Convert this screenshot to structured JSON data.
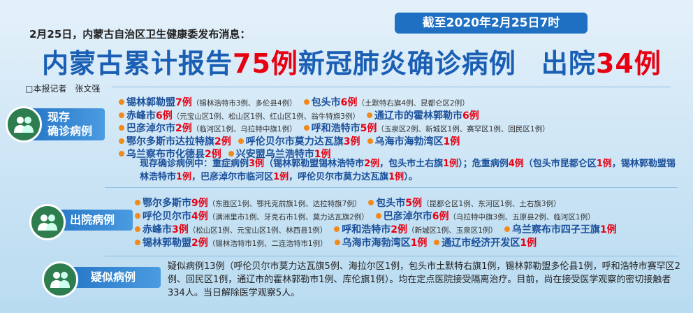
{
  "header": {
    "date_badge": "截至2020年2月25日7时",
    "intro": "2月25日，内蒙古自治区卫生健康委发布消息：",
    "headline": {
      "part1": "内蒙古累计报告",
      "confirmed": "75例",
      "part2": "新冠肺炎确诊病例",
      "part3": "出院",
      "discharged": "34例"
    },
    "byline": "□本报记者　张文强"
  },
  "sections": [
    {
      "label_top": "现存",
      "label_bottom": "确诊病例",
      "rows": [
        [
          {
            "name": "锡林郭勒盟",
            "count": "7例",
            "detail": "（锡林浩特市3例、多伦县4例）"
          },
          {
            "name": "包头市",
            "count": "6例",
            "detail": "（土默特右旗4例、昆都仑区2例）"
          }
        ],
        [
          {
            "name": "赤峰市",
            "count": "6例",
            "detail": "（元宝山区1例、松山区1例、红山区1例、翁牛特旗3例）"
          },
          {
            "name": "通辽市的霍林郭勒市",
            "count": "6例",
            "detail": ""
          }
        ],
        [
          {
            "name": "巴彦淖尔市",
            "count": "2例",
            "detail": "（临河区1例、乌拉特中旗1例）"
          },
          {
            "name": "呼和浩特市",
            "count": "5例",
            "detail": "（玉泉区2例、新城区1例、赛罕区1例、回民区1例）"
          }
        ],
        [
          {
            "name": "鄂尔多斯市达拉特旗",
            "count": "2例",
            "detail": ""
          },
          {
            "name": "呼伦贝尔市莫力达瓦旗",
            "count": "3例",
            "detail": ""
          },
          {
            "name": "乌海市海勃湾区",
            "count": "1例",
            "detail": ""
          }
        ],
        [
          {
            "name": "乌兰察布市化德县",
            "count": "2例",
            "detail": ""
          },
          {
            "name": "兴安盟乌兰浩特市",
            "count": "1例",
            "detail": ""
          }
        ]
      ],
      "note": [
        "现存确诊病例中：重症病例",
        "3例",
        "（锡林郭勒盟锡林浩特市",
        "2例",
        "，包头市土右旗",
        "1例",
        "）；危重病例",
        "4例",
        "（包头市昆都仑区",
        "1例",
        "，锡林郭勒盟锡林浩特市",
        "1例",
        "，巴彦淖尔市临河区",
        "1例",
        "，呼伦贝尔市莫力达瓦旗",
        "1例",
        "）。"
      ]
    },
    {
      "label": "出院病例",
      "rows": [
        [
          {
            "name": "鄂尔多斯市",
            "count": "9例",
            "detail": "（东胜区1例、鄂托克前旗1例、达拉特旗7例）"
          },
          {
            "name": "包头市",
            "count": "5例",
            "detail": "（昆都仑区1例、东河区1例、土右旗3例）"
          }
        ],
        [
          {
            "name": "呼伦贝尔市",
            "count": "4例",
            "detail": "（满洲里市1例、牙克石市1例、莫力达瓦旗2例）"
          },
          {
            "name": "巴彦淖尔市",
            "count": "6例",
            "detail": "（乌拉特中旗3例、五原县2例、临河区1例）"
          }
        ],
        [
          {
            "name": "赤峰市",
            "count": "3例",
            "detail": "（松山区1例、元宝山区1例、林西县1例）"
          },
          {
            "name": "呼和浩特市",
            "count": "2例",
            "detail": "（新城区1例、玉泉区1例）"
          },
          {
            "name": "乌兰察布市四子王旗",
            "count": "1例",
            "detail": ""
          }
        ],
        [
          {
            "name": "锡林郭勒盟",
            "count": "2例",
            "detail": "（锡林浩特市1例、二连浩特市1例）"
          },
          {
            "name": "乌海市海勃湾区",
            "count": "1例",
            "detail": ""
          },
          {
            "name": "通辽市经济开发区",
            "count": "1例",
            "detail": ""
          }
        ]
      ]
    },
    {
      "label": "疑似病例",
      "text": "疑似病例13例（呼伦贝尔市莫力达瓦旗5例、海拉尔区1例，包头市土默特右旗1例，锡林郭勒盟多伦县1例，呼和浩特市赛罕区2例、回民区1例，通辽市的霍林郭勒市1例、库伦旗1例）。均在定点医院接受隔离治疗。目前，尚在接受医学观察的密切接触者334人。当日解除医学观察5人。"
    }
  ]
}
